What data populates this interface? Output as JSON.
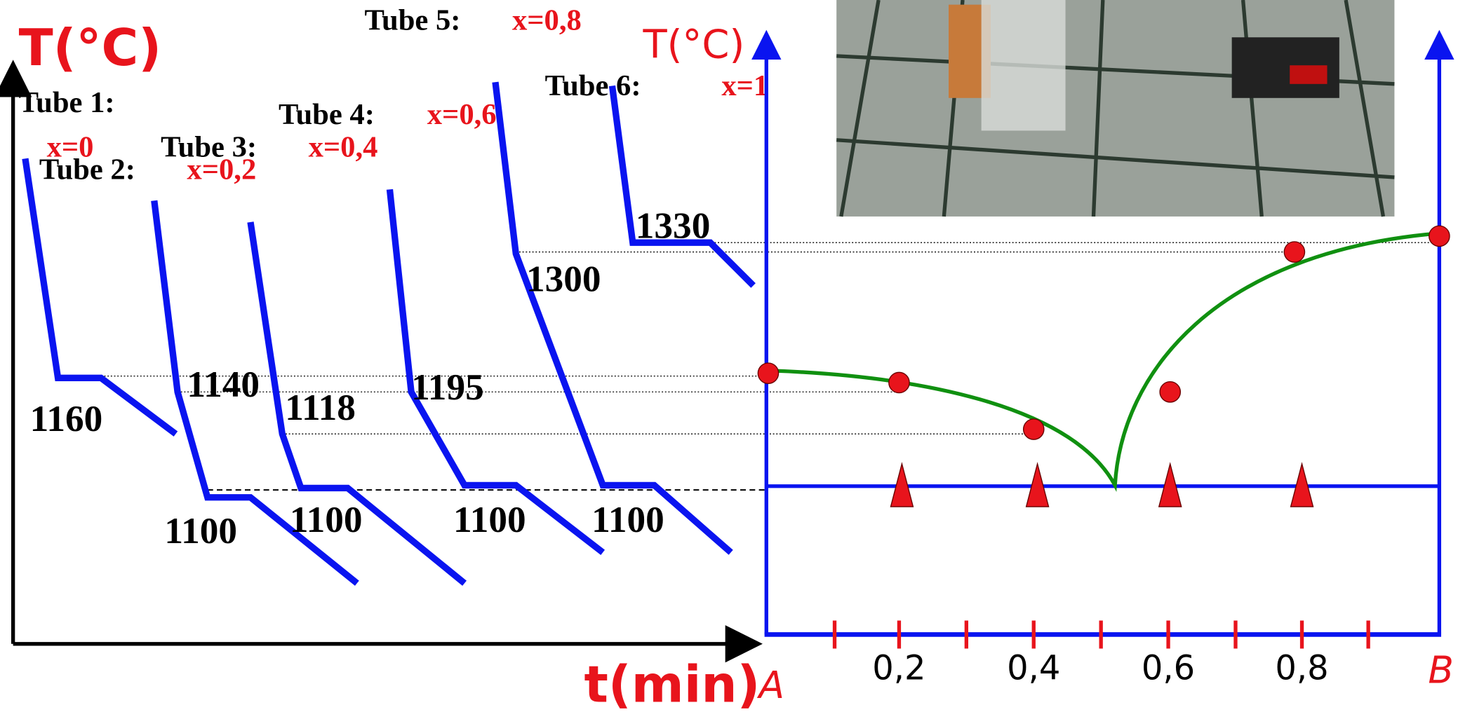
{
  "left_axis": {
    "y_label": "T(°C)",
    "x_label": "t(min)"
  },
  "tubes": [
    {
      "label": "Tube 1:",
      "composition": "x=0"
    },
    {
      "label": "Tube 2:",
      "composition": "x=0,2"
    },
    {
      "label": "Tube 3:",
      "composition": "x=0,4"
    },
    {
      "label": "Tube 4:",
      "composition": "x=0,6"
    },
    {
      "label": "Tube 5:",
      "composition": "x=0,8"
    },
    {
      "label": "Tube 6:",
      "composition": "x=1"
    }
  ],
  "temperature_labels": [
    "1160",
    "1140",
    "1118",
    "1195",
    "1300",
    "1330",
    "1100",
    "1100",
    "1100",
    "1100"
  ],
  "phase_diagram": {
    "y_label": "T(°C)",
    "x_tick_labels": [
      "0,2",
      "0,4",
      "0,6",
      "0,8"
    ],
    "left_end": "A",
    "right_end": "B"
  }
}
